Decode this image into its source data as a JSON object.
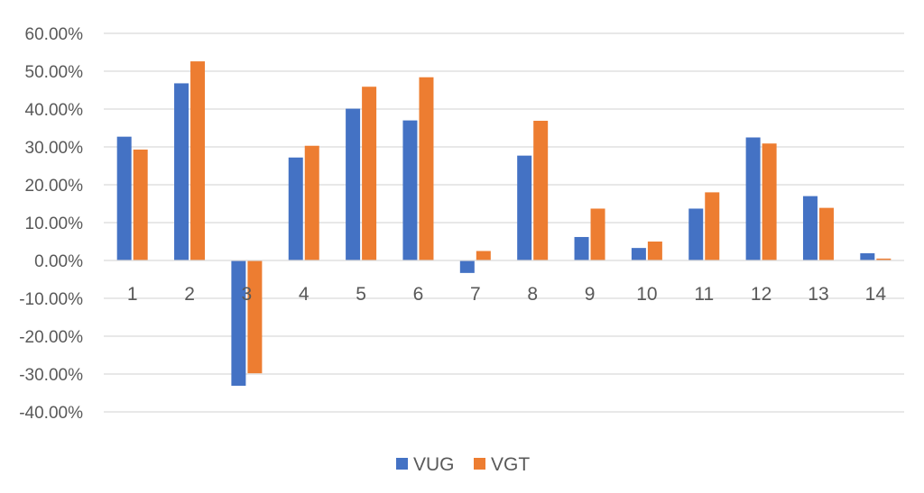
{
  "chart_data": {
    "type": "bar",
    "categories": [
      "1",
      "2",
      "3",
      "4",
      "5",
      "6",
      "7",
      "8",
      "9",
      "10",
      "11",
      "12",
      "13",
      "14"
    ],
    "series": [
      {
        "name": "VUG",
        "color": "#4472C4",
        "values": [
          32.7,
          46.8,
          -33.1,
          27.2,
          40.1,
          37.0,
          -3.3,
          27.7,
          6.2,
          3.3,
          13.7,
          32.5,
          17.0,
          1.9
        ]
      },
      {
        "name": "VGT",
        "color": "#ED7D31",
        "values": [
          29.3,
          52.6,
          -29.8,
          30.3,
          45.9,
          48.4,
          2.5,
          36.9,
          13.7,
          5.0,
          18.0,
          30.9,
          13.9,
          0.5
        ]
      }
    ],
    "y_ticks": [
      "60.00%",
      "50.00%",
      "40.00%",
      "30.00%",
      "20.00%",
      "10.00%",
      "0.00%",
      "-10.00%",
      "-20.00%",
      "-30.00%",
      "-40.00%"
    ],
    "ylim": [
      -40,
      60
    ],
    "title": "",
    "xlabel": "",
    "ylabel": "",
    "grid": true,
    "legend_position": "bottom"
  }
}
